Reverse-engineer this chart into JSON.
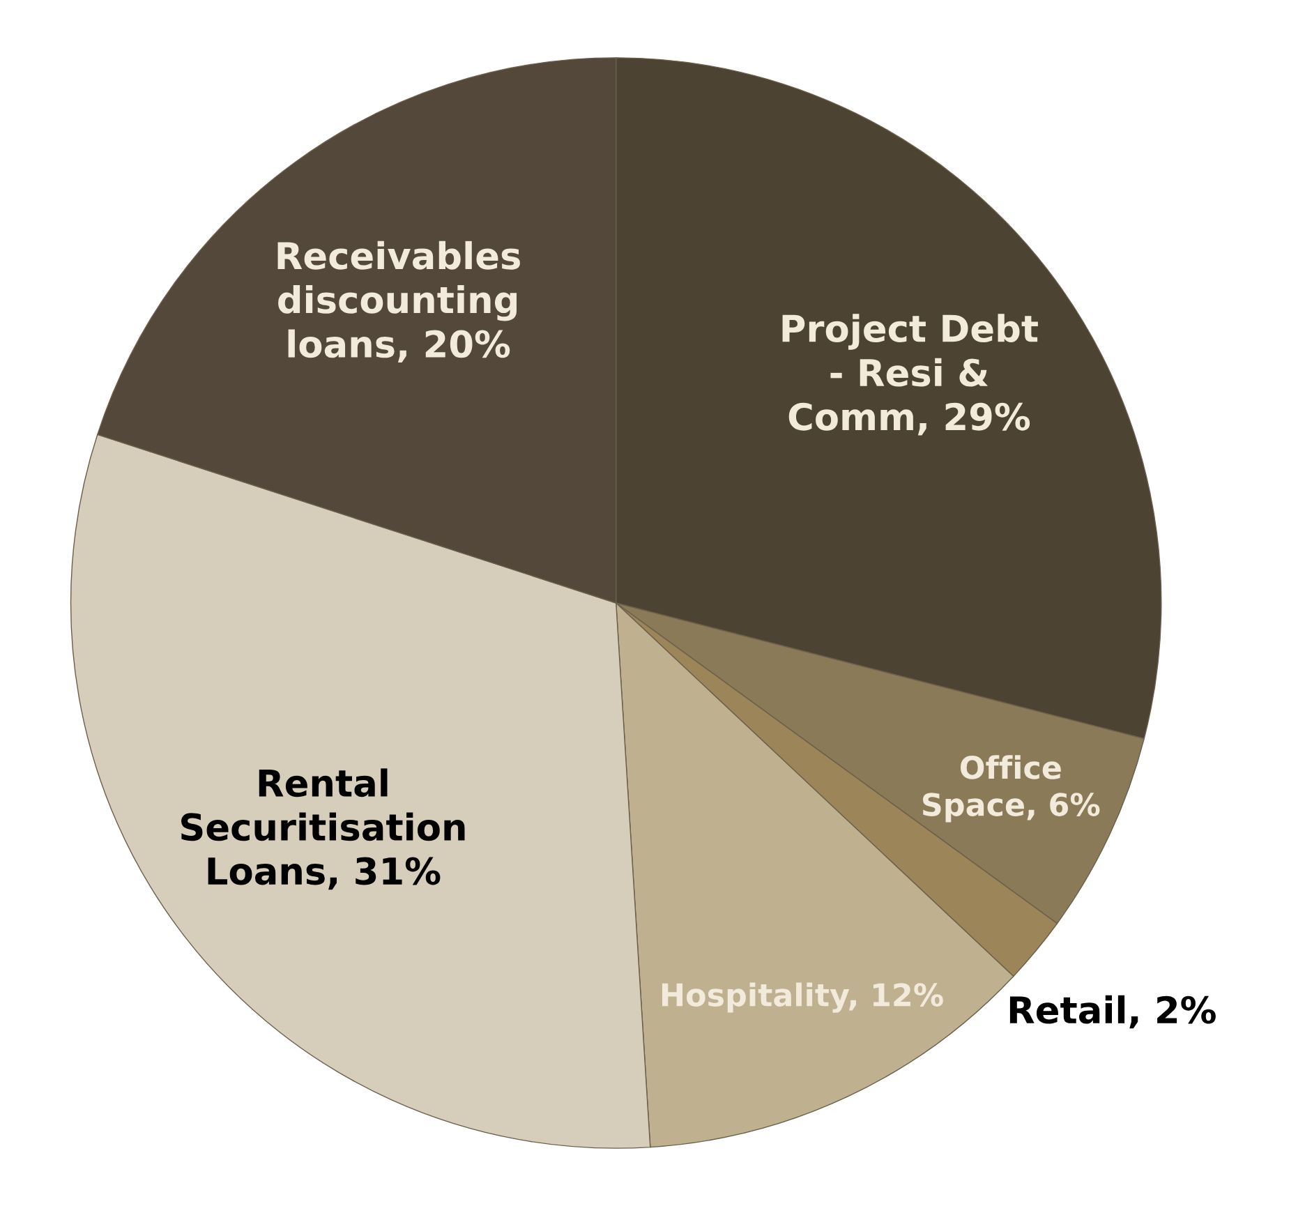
{
  "chart_data": {
    "type": "pie",
    "categories": [
      "Project Debt - Resi & Comm",
      "Office Space",
      "Retail",
      "Hospitality",
      "Rental Securitisation Loans",
      "Receivables discounting loans"
    ],
    "values": [
      29,
      6,
      2,
      12,
      31,
      20
    ],
    "value_labels": [
      "29%",
      "6%",
      "2%",
      "12%",
      "31%",
      "20%"
    ],
    "colors": [
      "#4d4332",
      "#8a7a58",
      "#9c8558",
      "#bfb08f",
      "#d6ceba",
      "#54483a"
    ]
  }
}
